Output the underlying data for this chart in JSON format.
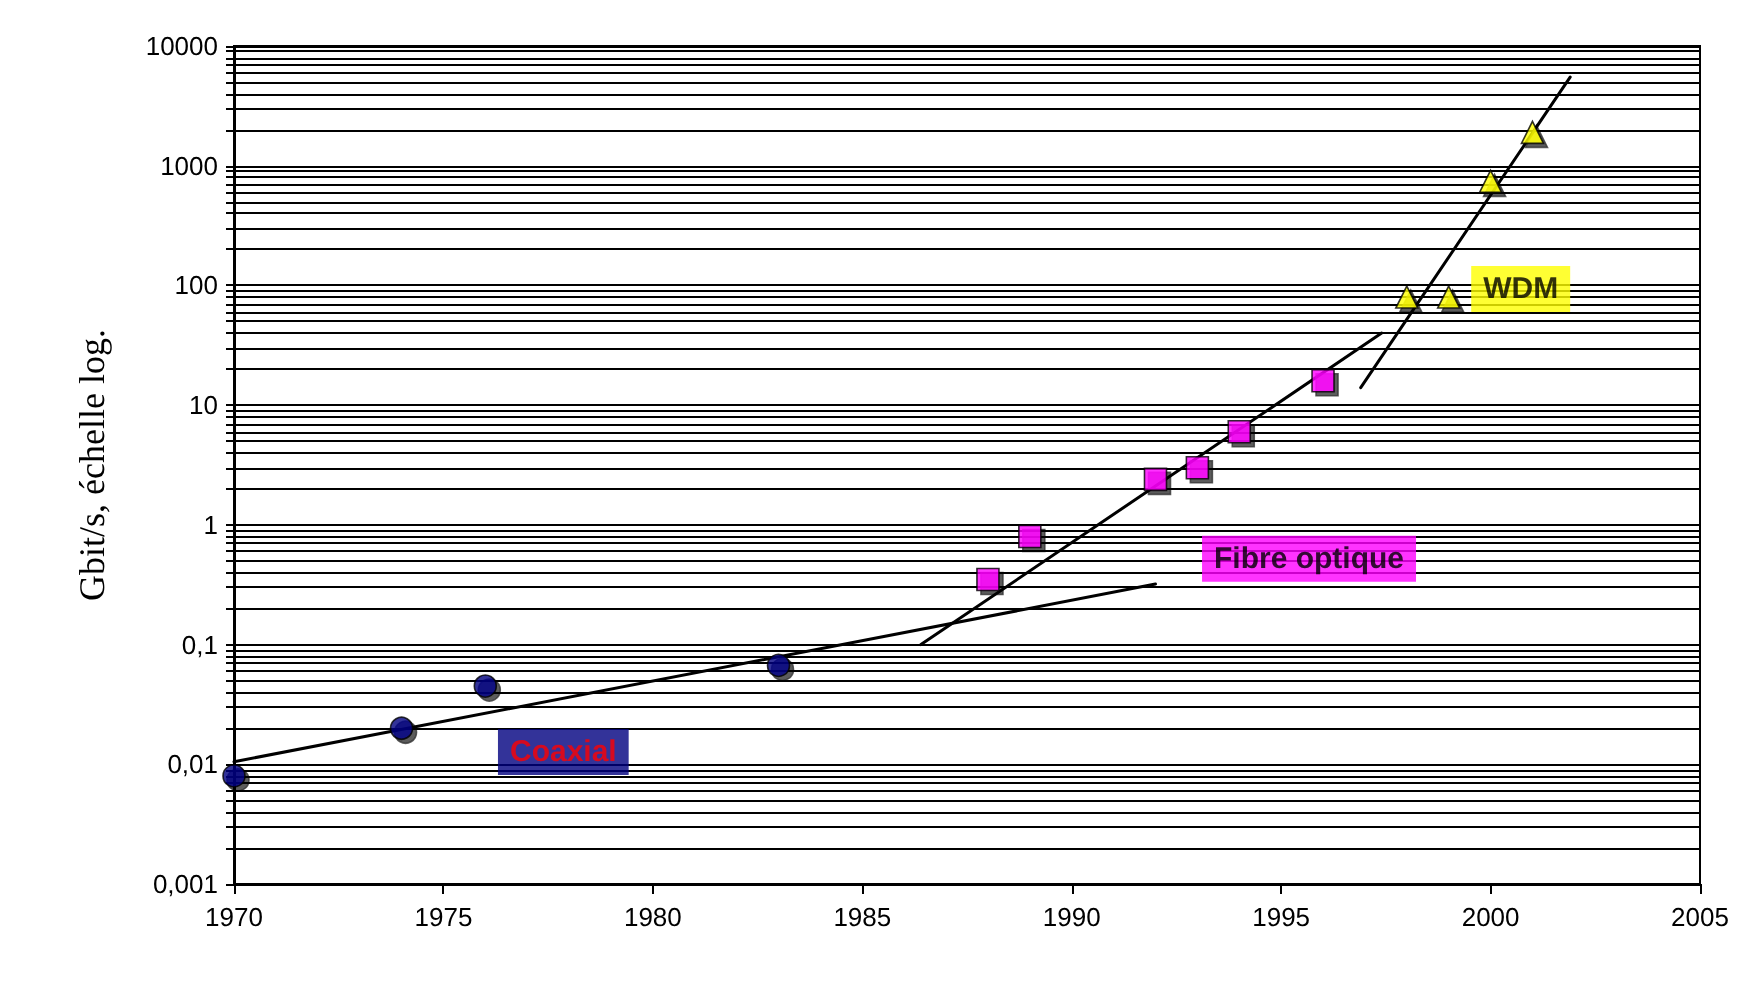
{
  "chart_data": {
    "type": "scatter",
    "ylabel": "Gbit/s, échelle log.",
    "log": "y",
    "grid": "y",
    "xlim": [
      1970,
      2005
    ],
    "xticks": [
      1970,
      1975,
      1980,
      1985,
      1990,
      1995,
      2000,
      2005
    ],
    "ylim": [
      0.001,
      10000
    ],
    "yticks": [
      {
        "value": 0.001,
        "label": "0,001"
      },
      {
        "value": 0.01,
        "label": "0,01"
      },
      {
        "value": 0.1,
        "label": "0,1"
      },
      1,
      10,
      100,
      1000,
      10000
    ],
    "series": [
      {
        "name": "Coaxial",
        "color": "#000080",
        "marker": "circle",
        "x": [
          1970,
          1974,
          1976,
          1983
        ],
        "values": [
          0.008,
          0.02,
          0.045,
          0.067
        ]
      },
      {
        "name": "Fibre optique",
        "color": "#ff00ff",
        "marker": "square",
        "x": [
          1988,
          1989,
          1992,
          1993,
          1994,
          1996
        ],
        "values": [
          0.35,
          0.8,
          2.4,
          3,
          6,
          16
        ]
      },
      {
        "name": "WDM",
        "color": "#ffff00",
        "marker": "triangle",
        "x": [
          1998,
          1999,
          2000,
          2001
        ],
        "values": [
          80,
          80,
          740,
          1900
        ]
      },
      {
        "type": "line",
        "color": "#000000",
        "marker": "none",
        "x": [
          1970,
          1992
        ],
        "values": [
          0.0105,
          0.32
        ]
      },
      {
        "type": "line",
        "color": "#000000",
        "marker": "none",
        "x": [
          1986.4,
          1997.4
        ],
        "values": [
          0.1,
          40
        ]
      },
      {
        "type": "line",
        "color": "#000000",
        "marker": "none",
        "x": [
          1996.9,
          2001.9
        ],
        "values": [
          14,
          5500
        ]
      }
    ]
  }
}
